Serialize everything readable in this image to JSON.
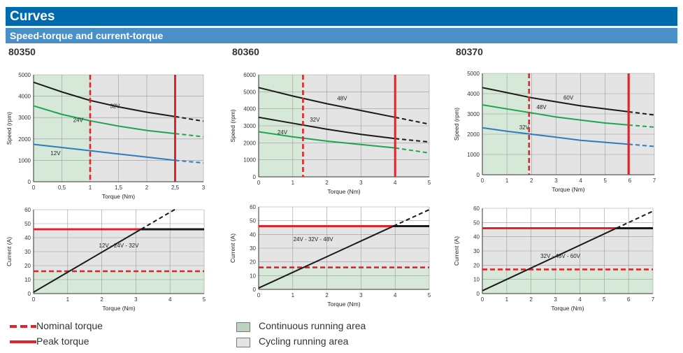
{
  "header": {
    "title": "Curves",
    "subtitle": "Speed-torque and current-torque"
  },
  "colors": {
    "title_bg": "#006aae",
    "subtitle_bg": "#4a90c8",
    "continuous_area": "#d6e9d8",
    "cycling_area": "#e4e4e4",
    "limit_line": "#e0242b",
    "v12": "#2f7bc0",
    "v24": "#1fa54f",
    "v32": "#1a1a1a",
    "current_line": "#1a1a1a"
  },
  "models": [
    {
      "name": "80350"
    },
    {
      "name": "80360"
    },
    {
      "name": "80370"
    }
  ],
  "legend": {
    "nominal_torque": "Nominal torque",
    "peak_torque": "Peak torque",
    "continuous": "Continuous running area",
    "cycling": "Cycling running area"
  },
  "chart_data": [
    {
      "type": "line",
      "model": "80350",
      "kind": "speed",
      "xlabel": "Torque (Nm)",
      "ylabel": "Speed (rpm)",
      "xlim": [
        0,
        3
      ],
      "ylim": [
        0,
        5000
      ],
      "xticks": [
        0,
        0.5,
        1,
        1.5,
        2,
        2.5,
        3
      ],
      "xtick_labels": [
        "0",
        "0,5",
        "1",
        "1,5",
        "2",
        "2,5",
        "3"
      ],
      "yticks": [
        0,
        1000,
        2000,
        3000,
        4000,
        5000
      ],
      "ytick_labels": [
        "0",
        "1000",
        "2000",
        "3000",
        "4000",
        "5000"
      ],
      "nominal_torque": 1,
      "peak_torque": 2.5,
      "series": [
        {
          "name": "32V",
          "color_key": "v32",
          "label_pos": [
            1.35,
            3450
          ],
          "x": [
            0,
            0.5,
            1,
            1.5,
            2,
            2.5,
            3
          ],
          "y": [
            4650,
            4200,
            3800,
            3500,
            3250,
            3050,
            2830
          ]
        },
        {
          "name": "24V",
          "color_key": "v24",
          "label_pos": [
            0.7,
            2800
          ],
          "x": [
            0,
            0.5,
            1,
            1.5,
            2,
            2.5,
            3
          ],
          "y": [
            3550,
            3150,
            2850,
            2600,
            2400,
            2250,
            2100
          ]
        },
        {
          "name": "12V",
          "color_key": "v12",
          "label_pos": [
            0.3,
            1250
          ],
          "x": [
            0,
            0.5,
            1,
            1.5,
            2,
            2.5,
            3
          ],
          "y": [
            1750,
            1600,
            1450,
            1300,
            1150,
            1000,
            880
          ]
        }
      ]
    },
    {
      "type": "line",
      "model": "80360",
      "kind": "speed",
      "xlabel": "Torque (Nm)",
      "ylabel": "Speed (rpm)",
      "xlim": [
        0,
        5
      ],
      "ylim": [
        0,
        6000
      ],
      "xticks": [
        0,
        1,
        2,
        3,
        4,
        5
      ],
      "xtick_labels": [
        "0",
        "1",
        "2",
        "3",
        "4",
        "5"
      ],
      "yticks": [
        0,
        1000,
        2000,
        3000,
        4000,
        5000,
        6000
      ],
      "ytick_labels": [
        "0",
        "1000",
        "2000",
        "3000",
        "4000",
        "5000",
        "6000"
      ],
      "nominal_torque": 1.3,
      "peak_torque": 4,
      "series": [
        {
          "name": "48V",
          "color_key": "v32",
          "label_pos": [
            2.3,
            4500
          ],
          "x": [
            0,
            1,
            2,
            3,
            4,
            5
          ],
          "y": [
            5250,
            4750,
            4300,
            3900,
            3500,
            3100
          ]
        },
        {
          "name": "32V",
          "color_key": "v32",
          "label_pos": [
            1.5,
            3250
          ],
          "x": [
            0,
            1,
            2,
            3,
            4,
            5
          ],
          "y": [
            3500,
            3150,
            2800,
            2500,
            2250,
            2050
          ]
        },
        {
          "name": "24V",
          "color_key": "v24",
          "label_pos": [
            0.55,
            2500
          ],
          "x": [
            0,
            1,
            2,
            3,
            4,
            5
          ],
          "y": [
            2650,
            2350,
            2100,
            1900,
            1700,
            1400
          ]
        }
      ]
    },
    {
      "type": "line",
      "model": "80370",
      "kind": "speed",
      "xlabel": "Torque (Nm)",
      "ylabel": "Speed (rpm)",
      "xlim": [
        0,
        7
      ],
      "ylim": [
        0,
        5000
      ],
      "xticks": [
        0,
        1,
        2,
        3,
        4,
        5,
        6,
        7
      ],
      "xtick_labels": [
        "0",
        "1",
        "2",
        "3",
        "4",
        "5",
        "6",
        "7"
      ],
      "yticks": [
        0,
        1000,
        2000,
        3000,
        4000,
        5000
      ],
      "ytick_labels": [
        "0",
        "1000",
        "2000",
        "3000",
        "4000",
        "5000"
      ],
      "nominal_torque": 1.9,
      "peak_torque": 5.95,
      "series": [
        {
          "name": "60V",
          "color_key": "v32",
          "label_pos": [
            3.3,
            3700
          ],
          "x": [
            0,
            1,
            2,
            3,
            4,
            5,
            6,
            7
          ],
          "y": [
            4300,
            4050,
            3800,
            3600,
            3400,
            3250,
            3100,
            2950
          ]
        },
        {
          "name": "48V",
          "color_key": "v24",
          "label_pos": [
            2.2,
            3250
          ],
          "x": [
            0,
            1,
            2,
            3,
            4,
            5,
            6,
            7
          ],
          "y": [
            3450,
            3250,
            3050,
            2850,
            2700,
            2550,
            2450,
            2350
          ]
        },
        {
          "name": "32V",
          "color_key": "v12",
          "label_pos": [
            1.5,
            2250
          ],
          "x": [
            0,
            1,
            2,
            3,
            4,
            5,
            6,
            7
          ],
          "y": [
            2320,
            2150,
            2000,
            1850,
            1700,
            1600,
            1500,
            1400
          ]
        }
      ]
    },
    {
      "type": "line",
      "model": "80350",
      "kind": "current",
      "xlabel": "Torque (Nm)",
      "ylabel": "Current (A)",
      "xlim": [
        0,
        5
      ],
      "ylim": [
        0,
        60
      ],
      "xticks": [
        0,
        1,
        2,
        3,
        4,
        5
      ],
      "xtick_labels": [
        "0",
        "1",
        "2",
        "3",
        "4",
        "5"
      ],
      "yticks": [
        0,
        10,
        20,
        30,
        40,
        50,
        60
      ],
      "ytick_labels": [
        "0",
        "10",
        "20",
        "30",
        "40",
        "50",
        "60"
      ],
      "nominal_current": 16,
      "peak_current": 46,
      "series": [
        {
          "name": "12V - 24V - 32V",
          "color_key": "current_line",
          "label_pos": [
            2.5,
            33
          ],
          "x": [
            0,
            4.2
          ],
          "y": [
            1,
            61
          ]
        }
      ]
    },
    {
      "type": "line",
      "model": "80360",
      "kind": "current",
      "xlabel": "Torque (Nm)",
      "ylabel": "Current (A)",
      "xlim": [
        0,
        5
      ],
      "ylim": [
        0,
        60
      ],
      "xticks": [
        0,
        1,
        2,
        3,
        4,
        5
      ],
      "xtick_labels": [
        "0",
        "1",
        "2",
        "3",
        "4",
        "5"
      ],
      "yticks": [
        0,
        10,
        20,
        30,
        40,
        50,
        60
      ],
      "ytick_labels": [
        "0",
        "10",
        "20",
        "30",
        "40",
        "50",
        "60"
      ],
      "nominal_current": 16,
      "peak_current": 46,
      "series": [
        {
          "name": "24V - 32V - 48V",
          "color_key": "current_line",
          "label_pos": [
            1.6,
            35
          ],
          "x": [
            0,
            5
          ],
          "y": [
            1,
            58
          ]
        }
      ]
    },
    {
      "type": "line",
      "model": "80370",
      "kind": "current",
      "xlabel": "Torque (Nm)",
      "ylabel": "Current (A)",
      "xlim": [
        0,
        7
      ],
      "ylim": [
        0,
        60
      ],
      "xticks": [
        0,
        1,
        2,
        3,
        4,
        5,
        6,
        7
      ],
      "xtick_labels": [
        "0",
        "1",
        "2",
        "3",
        "4",
        "5",
        "6",
        "7"
      ],
      "yticks": [
        0,
        10,
        20,
        30,
        40,
        50,
        60
      ],
      "ytick_labels": [
        "0",
        "10",
        "20",
        "30",
        "40",
        "50",
        "60"
      ],
      "nominal_current": 17,
      "peak_current": 46,
      "series": [
        {
          "name": "32V - 48V - 60V",
          "color_key": "current_line",
          "label_pos": [
            3.2,
            25
          ],
          "x": [
            0,
            7
          ],
          "y": [
            2,
            58
          ]
        }
      ]
    }
  ]
}
